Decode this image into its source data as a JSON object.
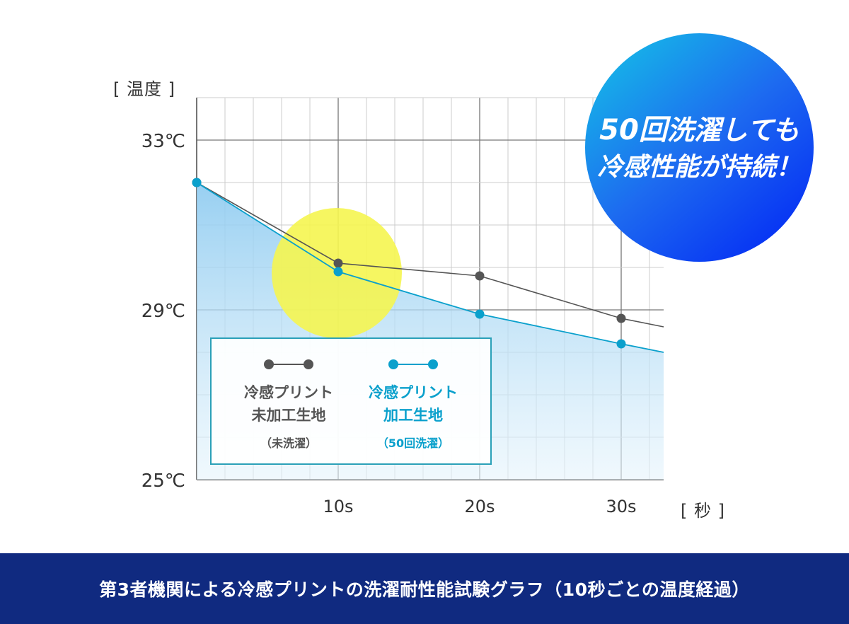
{
  "chart_data": {
    "type": "line",
    "title": "第3者機関による冷感プリントの洗濯耐性能試験グラフ（10秒ごとの温度経過）",
    "ylabel": "[ 温度 ]",
    "xlabel": "[ 秒 ]",
    "ylim": [
      25,
      34
    ],
    "xlim": [
      0,
      33
    ],
    "y_ticks": [
      25,
      29,
      33
    ],
    "y_tick_labels": [
      "25℃",
      "29℃",
      "33℃"
    ],
    "x_ticks": [
      10,
      20,
      30
    ],
    "x_tick_labels": [
      "10s",
      "20s",
      "30s"
    ],
    "grid": true,
    "series": [
      {
        "name": "冷感プリント未加工生地",
        "note": "（未洗濯）",
        "color": "#555555",
        "x": [
          0,
          10,
          20,
          30,
          33
        ],
        "values": [
          32.0,
          30.1,
          29.8,
          28.8,
          28.6
        ],
        "marker_count": 4
      },
      {
        "name": "冷感プリント加工生地",
        "note": "（50回洗濯）",
        "color": "#0aa0cc",
        "x": [
          0,
          10,
          20,
          30,
          33
        ],
        "values": [
          32.0,
          29.9,
          28.9,
          28.2,
          28.0
        ],
        "marker_count": 4
      }
    ],
    "highlight": {
      "x": 10,
      "y": 29.9,
      "color": "#f5f550"
    }
  },
  "badge": {
    "line1_big": "50回",
    "line1_small": "洗濯しても",
    "line2": "冷感性能が持続！"
  },
  "legend": [
    {
      "name_line1": "冷感プリント",
      "name_line2": "未加工生地",
      "note": "（未洗濯）",
      "color": "#555555"
    },
    {
      "name_line1": "冷感プリント",
      "name_line2": "加工生地",
      "note": "（50回洗濯）",
      "color": "#0aa0cc"
    }
  ],
  "banner": {
    "text": "第3者機関による冷感プリントの洗濯耐性能試験グラフ（10秒ごとの温度経過）"
  }
}
